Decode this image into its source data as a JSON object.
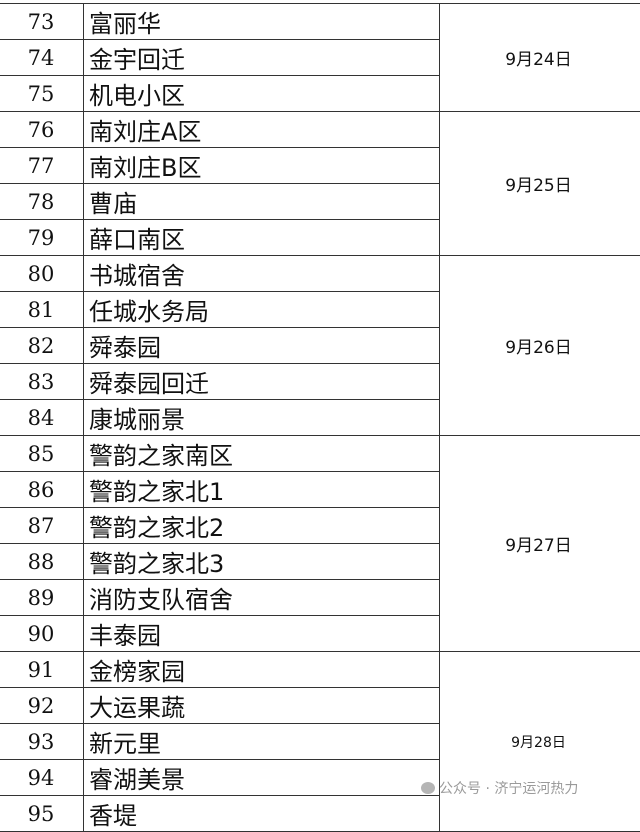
{
  "groups": [
    {
      "date": "9月24日",
      "rows": [
        {
          "no": "73",
          "name": "富丽华"
        },
        {
          "no": "74",
          "name": "金宇回迁"
        },
        {
          "no": "75",
          "name": "机电小区"
        }
      ]
    },
    {
      "date": "9月25日",
      "rows": [
        {
          "no": "76",
          "name": "南刘庄A区"
        },
        {
          "no": "77",
          "name": "南刘庄B区"
        },
        {
          "no": "78",
          "name": "曹庙"
        },
        {
          "no": "79",
          "name": "薛口南区"
        }
      ]
    },
    {
      "date": "9月26日",
      "rows": [
        {
          "no": "80",
          "name": "书城宿舍"
        },
        {
          "no": "81",
          "name": "任城水务局"
        },
        {
          "no": "82",
          "name": "舜泰园"
        },
        {
          "no": "83",
          "name": "舜泰园回迁"
        },
        {
          "no": "84",
          "name": "康城丽景"
        }
      ]
    },
    {
      "date": "9月27日",
      "rows": [
        {
          "no": "85",
          "name": "警韵之家南区"
        },
        {
          "no": "86",
          "name": "警韵之家北1"
        },
        {
          "no": "87",
          "name": "警韵之家北2"
        },
        {
          "no": "88",
          "name": "警韵之家北3"
        },
        {
          "no": "89",
          "name": "消防支队宿舍"
        },
        {
          "no": "90",
          "name": "丰泰园"
        }
      ]
    },
    {
      "date": "9月28日",
      "rows": [
        {
          "no": "91",
          "name": "金榜家园"
        },
        {
          "no": "92",
          "name": "大运果蔬"
        },
        {
          "no": "93",
          "name": "新元里"
        },
        {
          "no": "94",
          "name": "睿湖美景"
        },
        {
          "no": "95",
          "name": "香堤"
        }
      ]
    }
  ],
  "watermark": {
    "icon": "wechat-icon",
    "text": "公众号 · 济宁运河热力"
  }
}
